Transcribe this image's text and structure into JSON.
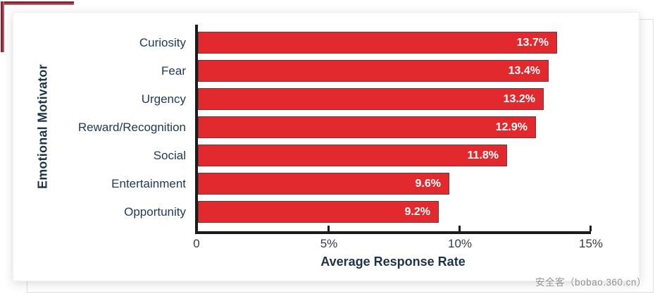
{
  "page": {
    "watermark": "安全客（bobao.360.cn）"
  },
  "chart_data": {
    "type": "bar",
    "orientation": "horizontal",
    "title": "",
    "xlabel": "Average Response Rate",
    "ylabel": "Emotional Motivator",
    "categories": [
      "Curiosity",
      "Fear",
      "Urgency",
      "Reward/Recognition",
      "Social",
      "Entertainment",
      "Opportunity"
    ],
    "values": [
      13.7,
      13.4,
      13.2,
      12.9,
      11.8,
      9.6,
      9.2
    ],
    "value_labels": [
      "13.7%",
      "13.4%",
      "13.2%",
      "12.9%",
      "11.8%",
      "9.6%",
      "9.2%"
    ],
    "xlim": [
      0,
      15
    ],
    "x_ticks": [
      "0",
      "5%",
      "10%",
      "15%"
    ],
    "x_tick_values": [
      0,
      5,
      10,
      15
    ],
    "grid": "off",
    "legend": "none",
    "bar_color": "#e2292e",
    "label_text_color": "#213a58",
    "value_text_color": "#ffffff",
    "axis_color": "#1b1b1b",
    "accent_bracket_color": "#8e2132"
  }
}
